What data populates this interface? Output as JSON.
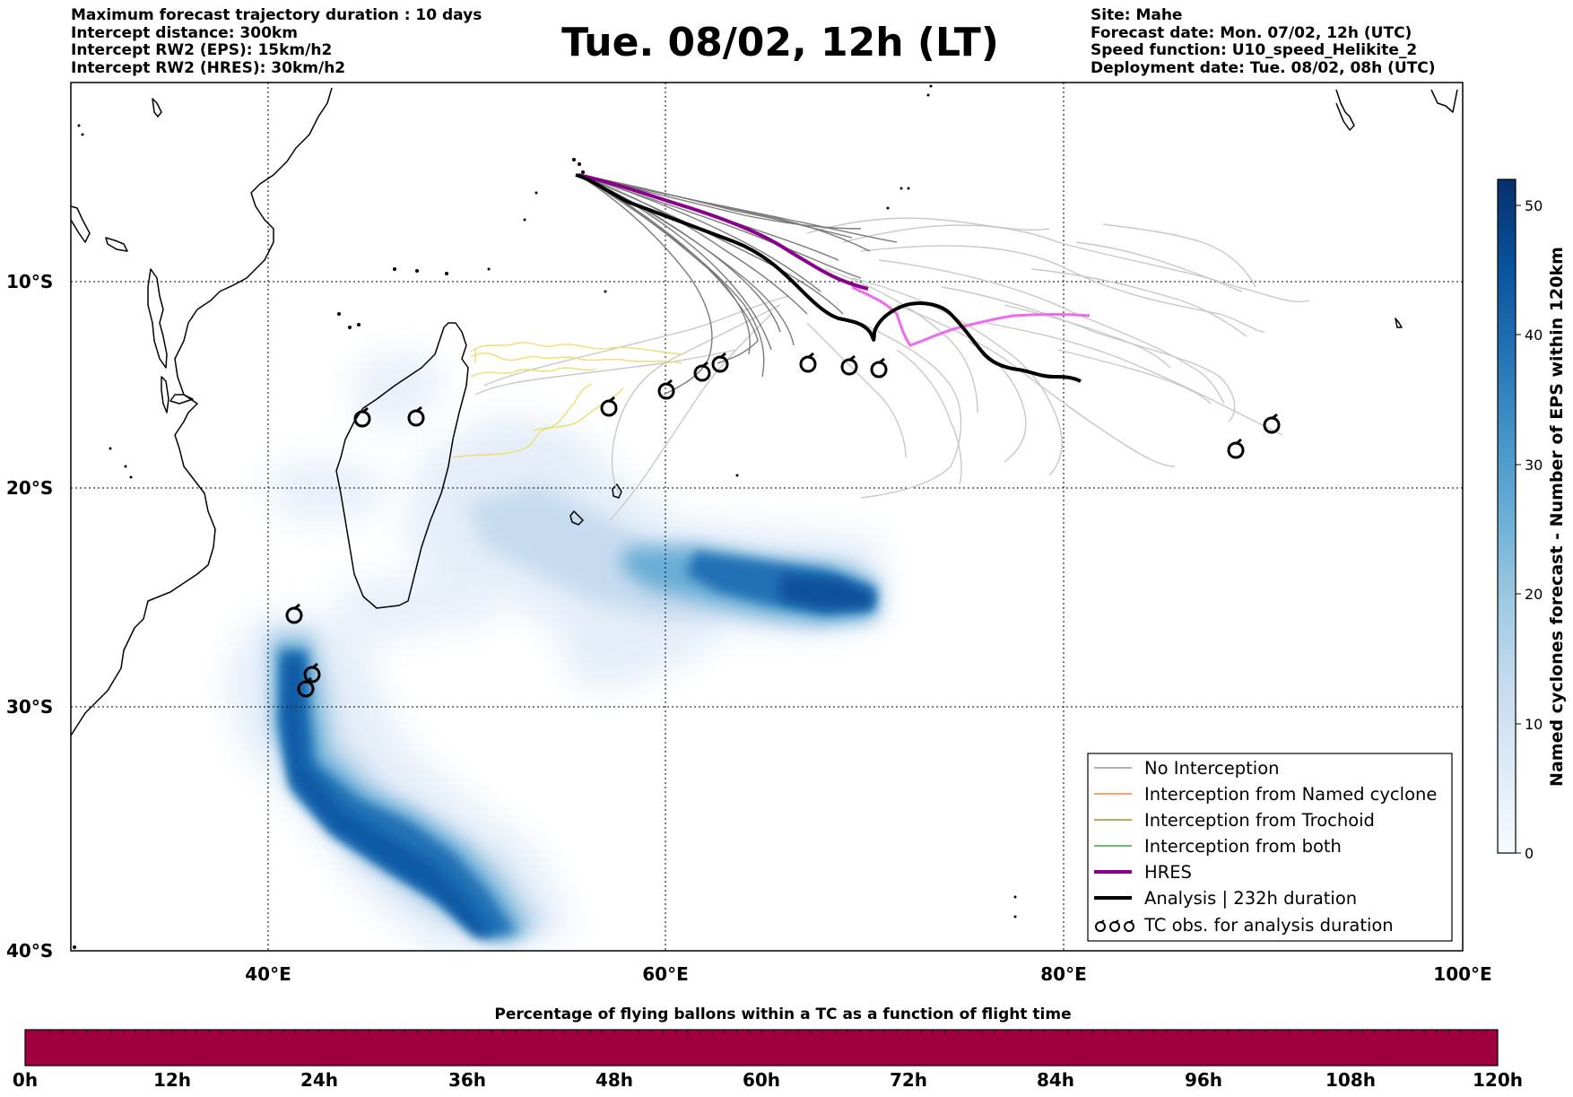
{
  "header": {
    "left_lines": [
      "Maximum forecast trajectory duration : 10 days",
      "Intercept distance: 300km",
      "Intercept RW2 (EPS):  15km/h2",
      "Intercept RW2 (HRES): 30km/h2"
    ],
    "title": "Tue. 08/02, 12h (LT)",
    "right_lines": [
      "Site: Mahe",
      "Forecast date: Mon. 07/02, 12h (UTC)",
      "Speed function: U10_speed_Helikite_2",
      "Deployment date: Tue. 08/02, 08h (UTC)"
    ]
  },
  "map": {
    "lon_range": [
      30,
      100
    ],
    "lat_range": [
      -40,
      1
    ],
    "lat_labels": [
      {
        "lat": -10,
        "label": "10°S"
      },
      {
        "lat": -20,
        "label": "20°S"
      },
      {
        "lat": -30,
        "label": "30°S"
      },
      {
        "lat": -40,
        "label": "40°S"
      }
    ],
    "lon_labels": [
      {
        "lon": 40,
        "label": "40°E"
      },
      {
        "lon": 60,
        "label": "60°E"
      },
      {
        "lon": 80,
        "label": "80°E"
      },
      {
        "lon": 100,
        "label": "100°E"
      }
    ],
    "gridlines": true
  },
  "legend": {
    "items": [
      {
        "label": "No Interception",
        "color": "#808080",
        "kind": "line-thin"
      },
      {
        "label": "Interception from Named cyclone",
        "color": "#ff6a1a",
        "kind": "line-thin"
      },
      {
        "label": "Interception from Trochoid",
        "color": "#808000",
        "kind": "line-thin"
      },
      {
        "label": "Interception from both",
        "color": "#228b22",
        "kind": "line-thin"
      },
      {
        "label": "HRES",
        "color": "#8b008b",
        "kind": "line-thick"
      },
      {
        "label": "Analysis | 232h duration",
        "color": "#000000",
        "kind": "line-thick"
      },
      {
        "label": "TC obs. for analysis duration",
        "color": "#000000",
        "kind": "tc-symbol"
      }
    ]
  },
  "colorbar_right": {
    "label": "Named cyclones forecast - Number of EPS within 120km",
    "min": 0,
    "max": 52,
    "ticks": [
      "0",
      "10",
      "20",
      "30",
      "40",
      "50"
    ],
    "colors": [
      "#f7fbff",
      "#deebf7",
      "#c6dbef",
      "#9ecae1",
      "#6baed6",
      "#4292c6",
      "#2171b5",
      "#08519c",
      "#08306b"
    ]
  },
  "colorbar_bottom": {
    "title": "Percentage of flying ballons within a TC as a function of flight time",
    "color": "#a1003f",
    "ticks": [
      "0h",
      "12h",
      "24h",
      "36h",
      "48h",
      "60h",
      "72h",
      "84h",
      "96h",
      "108h",
      "120h"
    ]
  },
  "tracks": {
    "hres_color": "#8b008b",
    "hres_ext_color": "#ee6aee",
    "analysis_color": "#000000",
    "trochoid_color": "#e8e070"
  }
}
